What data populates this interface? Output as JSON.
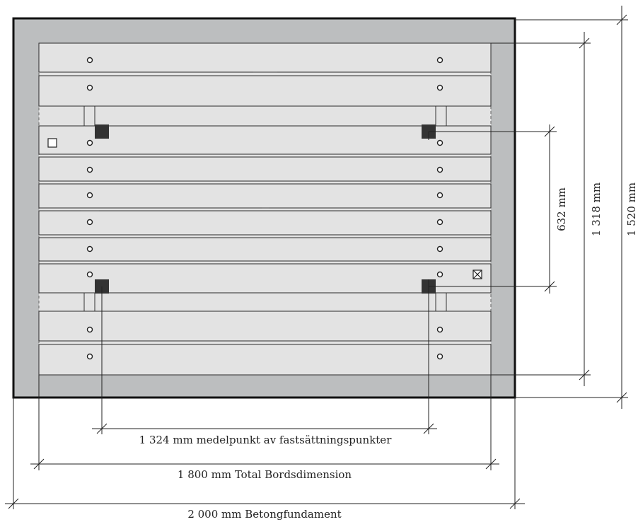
{
  "colors": {
    "foundation_fill": "#bcbebf",
    "table_fill": "#e3e3e3",
    "anchor_fill": "#333333",
    "outline": "#111111"
  },
  "dimensions": {
    "anchor_spacing_horizontal": "1 324 mm medelpunkt av fastsättningspunkter",
    "table_length": "1 800 mm Total Bordsdimension",
    "foundation_length": "2 000 mm Betongfundament",
    "anchor_spacing_vertical": "632 mm",
    "table_width": "1 318 mm",
    "foundation_width": "1 520 mm"
  },
  "symbols": {
    "open_square": "square-icon",
    "crossed_square": "crossed-square-icon"
  }
}
